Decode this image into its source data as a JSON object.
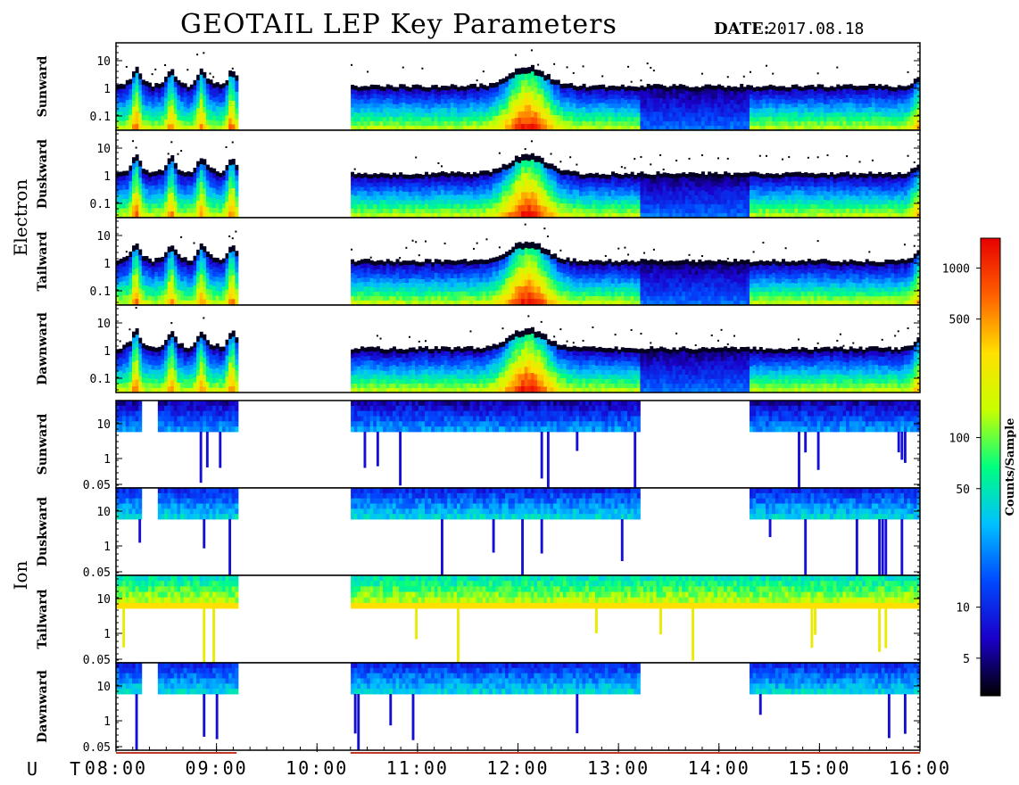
{
  "header": {
    "title": "GEOTAIL LEP Key Parameters",
    "date_label": "DATE:",
    "date_value": "2017.08.18"
  },
  "x_axis_label": "U T",
  "colorbar": {
    "label": "Counts/Sample",
    "scale": "log",
    "range": [
      3,
      1500
    ],
    "ticks": [
      1000,
      500,
      100,
      50,
      10,
      5
    ],
    "colors": [
      "#000000",
      "#1a00c8",
      "#0048ff",
      "#00c0ff",
      "#00ff80",
      "#c8ff00",
      "#ffe000",
      "#ff6000",
      "#e80000"
    ]
  },
  "chart_data": {
    "type": "heatmap",
    "title": "GEOTAIL LEP Key Parameters",
    "date": "2017.08.18",
    "xlabel": "U T",
    "x_range": [
      "08:00",
      "16:00"
    ],
    "x_ticks": [
      "08:00",
      "09:00",
      "10:00",
      "11:00",
      "12:00",
      "13:00",
      "14:00",
      "15:00",
      "16:00"
    ],
    "data_gaps": [
      [
        "09:12",
        "10:20"
      ]
    ],
    "colorbar_label": "Counts/Sample",
    "colorbar_ticks": [
      1000,
      500,
      100,
      50,
      10,
      5
    ],
    "groups": [
      {
        "name": "Electron",
        "panels": [
          "Sunward",
          "Duskward",
          "Tailward",
          "Dawnward"
        ],
        "y_ticks": [
          "10",
          "1",
          "0.1"
        ],
        "y_scale": "log"
      },
      {
        "name": "Ion",
        "panels": [
          "Sunward",
          "Duskward",
          "Tailward",
          "Dawnward"
        ],
        "y_ticks": [
          "10",
          "1",
          "0.05"
        ],
        "y_scale": "log"
      }
    ]
  }
}
